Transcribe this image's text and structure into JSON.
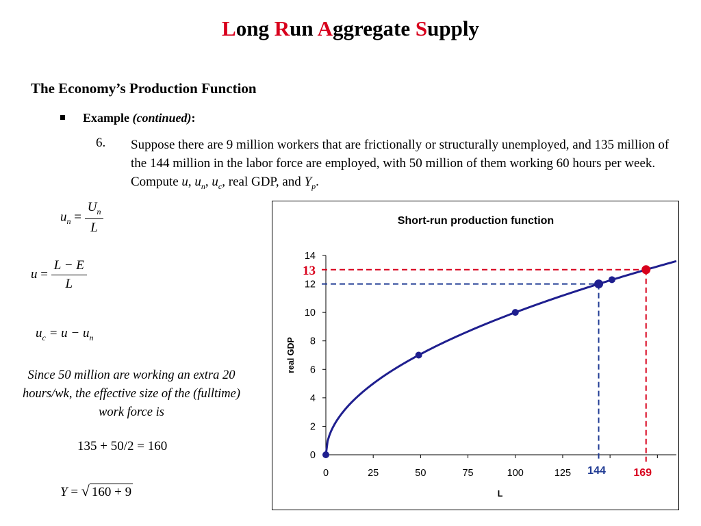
{
  "slide": {
    "title_parts": [
      {
        "text": "L",
        "red": true
      },
      {
        "text": "ong ",
        "red": false
      },
      {
        "text": "R",
        "red": true
      },
      {
        "text": "un ",
        "red": false
      },
      {
        "text": "A",
        "red": true
      },
      {
        "text": "ggregate ",
        "red": false
      },
      {
        "text": "S",
        "red": true
      },
      {
        "text": "upply",
        "red": false
      }
    ],
    "section_heading": "The Economy’s Production Function",
    "bullet_bold": "Example ",
    "bullet_italic": "(continued)",
    "bullet_colon": ":",
    "item_number": "6.",
    "item_text_plain": "Suppose there are 9 million workers that are frictionally or structurally unemployed, and 135 million of the 144 million in the labor force are employed, with 50 million of them working 60 hours per week. Compute ",
    "item_vars": {
      "u": "u",
      "sep1": ", ",
      "un_base": "u",
      "un_sub": "n",
      "sep2": ", ",
      "uc_base": "u",
      "uc_sub": "c",
      "sep3": ", real GDP, and ",
      "yp_base": "Y",
      "yp_sub": "p",
      "end": "."
    },
    "formulas": {
      "un": {
        "lhs_base": "u",
        "lhs_sub": "n",
        "eq": " = ",
        "num_base": "U",
        "num_sub": "n",
        "den": "L"
      },
      "u": {
        "lhs": "u",
        "eq": " = ",
        "num": "L − E",
        "den": "L"
      },
      "uc": {
        "lhs_base": "u",
        "lhs_sub": "c",
        "rhs": " = u − u",
        "rhs_sub": "n"
      },
      "y": {
        "lhs": "Y",
        "eq": " = ",
        "radical_sign": "√",
        "radicand": "160 + 9"
      }
    },
    "note": "Since 50 million are working an extra 20 hours/wk, the effective size of the (fulltime) work force is",
    "calc": "135 + 50/2 = 160"
  },
  "colors": {
    "accent_red": "#d8001c",
    "curve_blue": "#1f1f8f",
    "dashed_blue": "#1f3a93"
  },
  "chart_data": {
    "type": "line",
    "title": "Short-run production function",
    "xlabel": "L",
    "ylabel": "real GDP",
    "xlim": [
      0,
      185
    ],
    "ylim": [
      0,
      14
    ],
    "x_ticks": [
      "0",
      "25",
      "50",
      "75",
      "100",
      "125"
    ],
    "y_ticks": [
      "0",
      "2",
      "4",
      "6",
      "8",
      "10",
      "12",
      "14"
    ],
    "grid": false,
    "series": [
      {
        "function": "sqrt",
        "x_range": [
          0,
          185
        ]
      }
    ],
    "markers": [
      {
        "x": 0,
        "y": 0
      },
      {
        "x": 49,
        "y": 7
      },
      {
        "x": 100,
        "y": 10
      },
      {
        "x": 144,
        "y": 12
      },
      {
        "x": 151,
        "y": 12.3
      },
      {
        "x": 169,
        "y": 13
      }
    ],
    "annotations": {
      "blue_x": "144",
      "blue_y": "12",
      "red_x": "169",
      "red_y": "13",
      "blue_point": {
        "x": 144,
        "y": 12
      },
      "red_point": {
        "x": 169,
        "y": 13
      }
    }
  }
}
